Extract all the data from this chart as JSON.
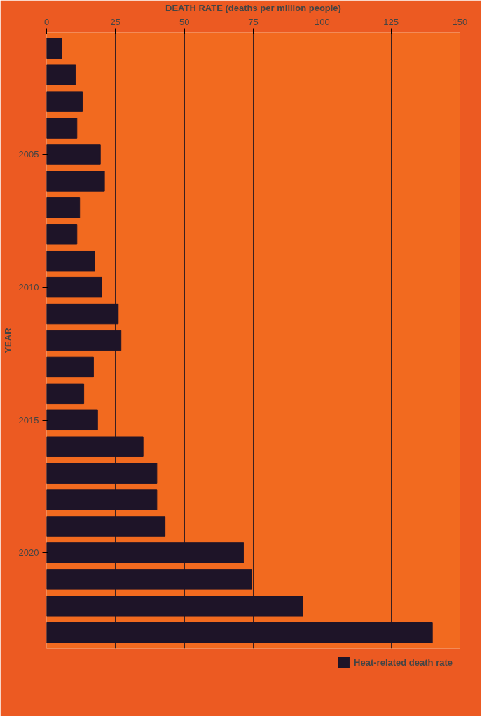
{
  "chart_data": {
    "type": "bar",
    "orientation": "horizontal",
    "xlabel": "DEATH RATE (deaths per million people)",
    "ylabel": "YEAR",
    "categories": [
      null,
      null,
      null,
      null,
      "2005",
      null,
      null,
      null,
      null,
      "2010",
      null,
      null,
      null,
      null,
      "2015",
      null,
      null,
      null,
      null,
      "2020",
      null,
      null,
      null
    ],
    "series": [
      {
        "name": "Heat-related death rate",
        "color": "#1e1428",
        "values": [
          5.5,
          10.5,
          13,
          11,
          19.5,
          21,
          12,
          11,
          17.5,
          20,
          26,
          27,
          17,
          13.5,
          18.5,
          35,
          40,
          40,
          43,
          71.5,
          74.5,
          93,
          140
        ]
      }
    ],
    "xlim": [
      0,
      150
    ],
    "xticks": [
      0,
      25,
      50,
      75,
      100,
      125,
      150
    ],
    "grid": "x",
    "legend": "bottom"
  }
}
